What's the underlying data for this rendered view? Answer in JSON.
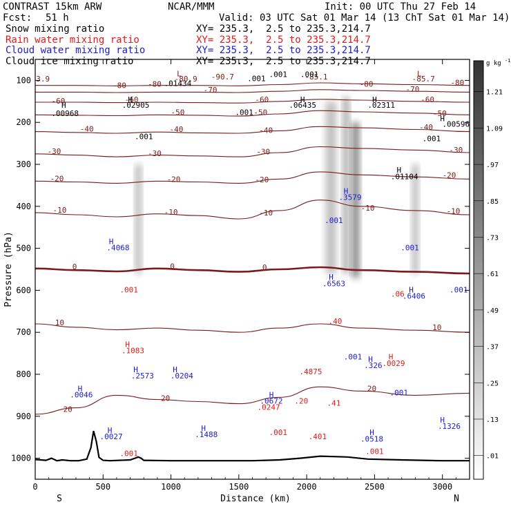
{
  "header": {
    "model": "CONTRAST 15km ARW",
    "center": "NCAR/MMM",
    "init": "Init: 00 UTC Thu 27 Feb 14",
    "fcst_label": "Fcst:",
    "fcst_value": "51 h",
    "valid": "Valid: 03 UTC Sat 01 Mar 14 (13 ChT Sat 01 Mar 14)"
  },
  "legend": [
    {
      "name": "Snow mixing ratio",
      "xy": "XY= 235.3,  2.5 to 235.3,214.7",
      "color": "#000000"
    },
    {
      "name": "Rain water mixing ratio",
      "xy": "XY= 235.3,  2.5 to 235.3,214.7",
      "color": "#e41a1a"
    },
    {
      "name": "Cloud water mixing ratio",
      "xy": "XY= 235.3,  2.5 to 235.3,214.7",
      "color": "#1a1ad6"
    },
    {
      "name": "Cloud ice mixing ratio",
      "xy": "XY= 235.3,  2.5 to 235.3,214.7",
      "color": "#000000"
    }
  ],
  "chart_data": {
    "type": "heatmap",
    "xlabel": "Distance (km)",
    "ylabel": "Pressure (hPa)",
    "xlim": [
      0,
      3200
    ],
    "ylim": [
      1050,
      50
    ],
    "x_ticks": [
      "0",
      "500",
      "1000",
      "1500",
      "2000",
      "2500",
      "3000"
    ],
    "y_ticks": [
      "100",
      "200",
      "300",
      "400",
      "500",
      "600",
      "700",
      "800",
      "900",
      "1000"
    ],
    "endpoint_labels": {
      "left": "S",
      "right": "N"
    },
    "colorbar": {
      "unit": "g kg",
      "unit_exp": "-1",
      "levels": [
        ".01",
        ".13",
        ".25",
        ".37",
        ".49",
        ".61",
        ".73",
        ".85",
        ".97",
        "1.09",
        "1.21"
      ]
    },
    "series": [
      {
        "name": "Snow mixing ratio",
        "style": "shaded",
        "color": "#444444"
      },
      {
        "name": "Rain water mixing ratio",
        "style": "dashed contours",
        "color": "#e41a1a"
      },
      {
        "name": "Cloud water mixing ratio",
        "style": "solid contours",
        "color": "#1a1ad6"
      },
      {
        "name": "Cloud ice mixing ratio",
        "style": "dashed contours",
        "color": "#000000"
      },
      {
        "name": "Temperature",
        "style": "contours",
        "color": "#7a1a1a"
      }
    ],
    "temperature_contours": [
      {
        "label": "0",
        "p": [
          548,
          552,
          555,
          548,
          552,
          556,
          550,
          545,
          552,
          556,
          560
        ],
        "x": [
          0,
          300,
          600,
          900,
          1200,
          1500,
          1800,
          2100,
          2400,
          2800,
          3200
        ]
      },
      {
        "label": "-10",
        "p": [
          415,
          420,
          425,
          418,
          422,
          430,
          410,
          385,
          400,
          410,
          420
        ],
        "x": [
          0,
          300,
          600,
          900,
          1200,
          1500,
          1800,
          2100,
          2400,
          2800,
          3200
        ]
      },
      {
        "label": "-20",
        "p": [
          340,
          342,
          345,
          340,
          342,
          345,
          335,
          318,
          325,
          330,
          335
        ],
        "x": [
          0,
          300,
          600,
          900,
          1200,
          1500,
          1800,
          2100,
          2400,
          2800,
          3200
        ]
      },
      {
        "label": "-30",
        "p": [
          275,
          278,
          282,
          278,
          280,
          282,
          272,
          258,
          262,
          266,
          272
        ],
        "x": [
          0,
          300,
          600,
          900,
          1200,
          1500,
          1800,
          2100,
          2400,
          2800,
          3200
        ]
      },
      {
        "label": "-40",
        "p": [
          222,
          224,
          226,
          223,
          225,
          226,
          220,
          210,
          213,
          217,
          222
        ],
        "x": [
          0,
          300,
          600,
          900,
          1200,
          1500,
          1800,
          2100,
          2400,
          2800,
          3200
        ]
      },
      {
        "label": "-50",
        "p": [
          182,
          183,
          184,
          182,
          183,
          185,
          180,
          172,
          175,
          178,
          182
        ],
        "x": [
          0,
          300,
          600,
          900,
          1200,
          1500,
          1800,
          2100,
          2400,
          2800,
          3200
        ]
      },
      {
        "label": "-60",
        "p": [
          152,
          152,
          153,
          152,
          153,
          154,
          150,
          145,
          147,
          150,
          152
        ],
        "x": [
          0,
          300,
          600,
          900,
          1200,
          1500,
          1800,
          2100,
          2400,
          2800,
          3200
        ]
      },
      {
        "label": "-70",
        "p": [
          128,
          128,
          129,
          128,
          128,
          129,
          126,
          122,
          124,
          126,
          128
        ],
        "x": [
          0,
          300,
          600,
          900,
          1200,
          1500,
          1800,
          2100,
          2400,
          2800,
          3200
        ]
      },
      {
        "label": "-80",
        "p": [
          112,
          112,
          113,
          112,
          112,
          113,
          110,
          106,
          108,
          110,
          112
        ],
        "x": [
          0,
          300,
          600,
          900,
          1200,
          1500,
          1800,
          2100,
          2400,
          2800,
          3200
        ]
      },
      {
        "label": "10",
        "p": [
          680,
          688,
          694,
          690,
          695,
          700,
          690,
          680,
          690,
          695,
          700
        ],
        "x": [
          0,
          300,
          600,
          900,
          1200,
          1500,
          1800,
          2100,
          2400,
          2800,
          3200
        ]
      },
      {
        "label": "20",
        "p": [
          895,
          880,
          850,
          860,
          865,
          870,
          855,
          830,
          840,
          850,
          845
        ],
        "x": [
          0,
          300,
          600,
          900,
          1200,
          1500,
          1800,
          2100,
          2400,
          2800,
          3200
        ]
      }
    ],
    "terrain": {
      "x": [
        0,
        80,
        120,
        160,
        200,
        260,
        320,
        380,
        410,
        430,
        450,
        470,
        500,
        550,
        700,
        760,
        780,
        800,
        1000,
        1400,
        1600,
        1800,
        1950,
        2100,
        2200,
        2300,
        2450,
        2700,
        3000,
        3200
      ],
      "p": [
        1003,
        1005,
        1000,
        1006,
        1004,
        1006,
        1006,
        1002,
        975,
        935,
        960,
        998,
        1005,
        1006,
        1004,
        997,
        1000,
        1005,
        1006,
        1006,
        1006,
        1004,
        1000,
        995,
        996,
        997,
        1002,
        1004,
        1006,
        1006
      ]
    },
    "snow_shading": [
      {
        "x": 760,
        "p_top": 300,
        "p_bot": 560,
        "width": 40,
        "intensity": 0.45
      },
      {
        "x": 2180,
        "p_top": 150,
        "p_bot": 560,
        "width": 80,
        "intensity": 0.35
      },
      {
        "x": 2290,
        "p_top": 140,
        "p_bot": 560,
        "width": 40,
        "intensity": 0.55
      },
      {
        "x": 2360,
        "p_top": 200,
        "p_bot": 570,
        "width": 50,
        "intensity": 0.75
      },
      {
        "x": 2800,
        "p_top": 300,
        "p_bot": 560,
        "width": 40,
        "intensity": 0.45
      }
    ],
    "annotations": [
      {
        "text": "L",
        "x": 1060,
        "p": 90,
        "color": "#7a1a1a"
      },
      {
        "text": "L",
        "x": 2830,
        "p": 90,
        "color": "#7a1a1a"
      },
      {
        "text": "33.9",
        "x": 40,
        "p": 103,
        "color": "#7a1a1a"
      },
      {
        "text": "-80.9",
        "x": 1110,
        "p": 103,
        "color": "#7a1a1a"
      },
      {
        "text": "-90.7",
        "x": 1380,
        "p": 98,
        "color": "#7a1a1a"
      },
      {
        "text": "-85.1",
        "x": 2070,
        "p": 98,
        "color": "#7a1a1a"
      },
      {
        "text": "-85.7",
        "x": 2860,
        "p": 103,
        "color": "#7a1a1a"
      },
      {
        "text": "-80",
        "x": 620,
        "p": 118,
        "color": "#7a1a1a"
      },
      {
        "text": "-80",
        "x": 880,
        "p": 115,
        "color": "#7a1a1a"
      },
      {
        "text": "-80",
        "x": 2440,
        "p": 115,
        "color": "#7a1a1a"
      },
      {
        "text": "-80",
        "x": 3110,
        "p": 112,
        "color": "#7a1a1a"
      },
      {
        "text": "-70",
        "x": 1290,
        "p": 129,
        "color": "#7a1a1a"
      },
      {
        "text": "-70",
        "x": 2780,
        "p": 127,
        "color": "#7a1a1a"
      },
      {
        "text": "-60",
        "x": 170,
        "p": 155,
        "color": "#7a1a1a"
      },
      {
        "text": "-60",
        "x": 710,
        "p": 152,
        "color": "#7a1a1a"
      },
      {
        "text": "-60",
        "x": 1670,
        "p": 152,
        "color": "#7a1a1a"
      },
      {
        "text": "-60",
        "x": 2890,
        "p": 152,
        "color": "#7a1a1a"
      },
      {
        "text": "-50",
        "x": 1050,
        "p": 182,
        "color": "#7a1a1a"
      },
      {
        "text": "-50",
        "x": 1660,
        "p": 182,
        "color": "#7a1a1a"
      },
      {
        "text": "-50",
        "x": 2980,
        "p": 185,
        "color": "#7a1a1a"
      },
      {
        "text": "-40",
        "x": 380,
        "p": 222,
        "color": "#7a1a1a"
      },
      {
        "text": "-40",
        "x": 1040,
        "p": 223,
        "color": "#7a1a1a"
      },
      {
        "text": "-40",
        "x": 1700,
        "p": 225,
        "color": "#7a1a1a"
      },
      {
        "text": "-40",
        "x": 2880,
        "p": 218,
        "color": "#7a1a1a"
      },
      {
        "text": "-30",
        "x": 140,
        "p": 275,
        "color": "#7a1a1a"
      },
      {
        "text": "-30",
        "x": 880,
        "p": 280,
        "color": "#7a1a1a"
      },
      {
        "text": "-30",
        "x": 1680,
        "p": 276,
        "color": "#7a1a1a"
      },
      {
        "text": "-30",
        "x": 3100,
        "p": 272,
        "color": "#7a1a1a"
      },
      {
        "text": "-20",
        "x": 160,
        "p": 340,
        "color": "#7a1a1a"
      },
      {
        "text": "-20",
        "x": 1020,
        "p": 342,
        "color": "#7a1a1a"
      },
      {
        "text": "-20",
        "x": 1670,
        "p": 343,
        "color": "#7a1a1a"
      },
      {
        "text": "-20",
        "x": 3050,
        "p": 332,
        "color": "#7a1a1a"
      },
      {
        "text": "-10",
        "x": 180,
        "p": 415,
        "color": "#7a1a1a"
      },
      {
        "text": "-10",
        "x": 1000,
        "p": 420,
        "color": "#7a1a1a"
      },
      {
        "text": "-10",
        "x": 1700,
        "p": 422,
        "color": "#7a1a1a"
      },
      {
        "text": "-10",
        "x": 2450,
        "p": 410,
        "color": "#7a1a1a"
      },
      {
        "text": "-10",
        "x": 3080,
        "p": 418,
        "color": "#7a1a1a"
      },
      {
        "text": "0",
        "x": 290,
        "p": 550,
        "color": "#7a1a1a"
      },
      {
        "text": "0",
        "x": 1010,
        "p": 549,
        "color": "#7a1a1a"
      },
      {
        "text": "0",
        "x": 1690,
        "p": 552,
        "color": "#7a1a1a"
      },
      {
        "text": "10",
        "x": 180,
        "p": 683,
        "color": "#7a1a1a"
      },
      {
        "text": "10",
        "x": 2960,
        "p": 695,
        "color": "#7a1a1a"
      },
      {
        "text": "20",
        "x": 240,
        "p": 890,
        "color": "#7a1a1a"
      },
      {
        "text": "20",
        "x": 960,
        "p": 863,
        "color": "#7a1a1a"
      },
      {
        "text": "20",
        "x": 2480,
        "p": 840,
        "color": "#7a1a1a"
      },
      {
        "text": "H",
        "x": 210,
        "p": 165,
        "color": "#000000"
      },
      {
        "text": ".00968",
        "x": 220,
        "p": 185,
        "color": "#000000"
      },
      {
        "text": "H",
        "x": 700,
        "p": 152,
        "color": "#000000"
      },
      {
        "text": ".02905",
        "x": 740,
        "p": 165,
        "color": "#000000"
      },
      {
        "text": ".01434",
        "x": 1050,
        "p": 113,
        "color": "#000000"
      },
      {
        "text": ".001",
        "x": 800,
        "p": 240,
        "color": "#000000"
      },
      {
        "text": ".001",
        "x": 1630,
        "p": 102,
        "color": "#000000"
      },
      {
        "text": ".001",
        "x": 1790,
        "p": 92,
        "color": "#000000"
      },
      {
        "text": ".001",
        "x": 2020,
        "p": 92,
        "color": "#000000"
      },
      {
        "text": ".001",
        "x": 1540,
        "p": 182,
        "color": "#000000"
      },
      {
        "text": ".001",
        "x": 2920,
        "p": 245,
        "color": "#000000"
      },
      {
        "text": "H",
        "x": 1970,
        "p": 152,
        "color": "#000000"
      },
      {
        "text": ".06435",
        "x": 1970,
        "p": 165,
        "color": "#000000"
      },
      {
        "text": "H",
        "x": 2500,
        "p": 152,
        "color": "#000000"
      },
      {
        "text": ".02311",
        "x": 2550,
        "p": 165,
        "color": "#000000"
      },
      {
        "text": "H",
        "x": 3000,
        "p": 197,
        "color": "#000000"
      },
      {
        "text": ".00596",
        "x": 3100,
        "p": 210,
        "color": "#000000"
      },
      {
        "text": "H",
        "x": 2680,
        "p": 320,
        "color": "#000000"
      },
      {
        "text": ".01104",
        "x": 2720,
        "p": 335,
        "color": "#000000"
      },
      {
        "text": "H",
        "x": 2290,
        "p": 370,
        "color": "#1a1ad6"
      },
      {
        "text": ".3579",
        "x": 2320,
        "p": 385,
        "color": "#1a1ad6"
      },
      {
        "text": ".001",
        "x": 2200,
        "p": 440,
        "color": "#1a1ad6"
      },
      {
        "text": "H",
        "x": 560,
        "p": 490,
        "color": "#1a1ad6"
      },
      {
        "text": ".4068",
        "x": 610,
        "p": 505,
        "color": "#1a1ad6"
      },
      {
        "text": ".001",
        "x": 2760,
        "p": 505,
        "color": "#1a1ad6"
      },
      {
        "text": "H",
        "x": 2180,
        "p": 575,
        "color": "#1a1ad6"
      },
      {
        "text": ".6563",
        "x": 2200,
        "p": 590,
        "color": "#1a1ad6"
      },
      {
        "text": "H",
        "x": 2770,
        "p": 605,
        "color": "#1a1ad6"
      },
      {
        "text": ".6406",
        "x": 2790,
        "p": 620,
        "color": "#1a1ad6"
      },
      {
        "text": ".001",
        "x": 3120,
        "p": 605,
        "color": "#1a1ad6"
      },
      {
        "text": ".001",
        "x": 2340,
        "p": 765,
        "color": "#1a1ad6"
      },
      {
        "text": "H",
        "x": 2470,
        "p": 770,
        "color": "#1a1ad6"
      },
      {
        "text": ".326",
        "x": 2490,
        "p": 785,
        "color": "#1a1ad6"
      },
      {
        "text": "H",
        "x": 740,
        "p": 795,
        "color": "#1a1ad6"
      },
      {
        "text": ".2573",
        "x": 790,
        "p": 810,
        "color": "#1a1ad6"
      },
      {
        "text": "H",
        "x": 1030,
        "p": 795,
        "color": "#1a1ad6"
      },
      {
        "text": ".0204",
        "x": 1080,
        "p": 810,
        "color": "#1a1ad6"
      },
      {
        "text": "H",
        "x": 330,
        "p": 840,
        "color": "#1a1ad6"
      },
      {
        "text": ".0046",
        "x": 340,
        "p": 855,
        "color": "#1a1ad6"
      },
      {
        "text": ".001",
        "x": 2680,
        "p": 850,
        "color": "#1a1ad6"
      },
      {
        "text": "H",
        "x": 1240,
        "p": 935,
        "color": "#1a1ad6"
      },
      {
        "text": ".1488",
        "x": 1260,
        "p": 950,
        "color": "#1a1ad6"
      },
      {
        "text": "H",
        "x": 2480,
        "p": 945,
        "color": "#1a1ad6"
      },
      {
        "text": ".0518",
        "x": 2480,
        "p": 960,
        "color": "#1a1ad6"
      },
      {
        "text": "H",
        "x": 3000,
        "p": 915,
        "color": "#1a1ad6"
      },
      {
        "text": ".1326",
        "x": 3050,
        "p": 930,
        "color": "#1a1ad6"
      },
      {
        "text": "H",
        "x": 550,
        "p": 940,
        "color": "#1a1ad6"
      },
      {
        "text": ".0027",
        "x": 560,
        "p": 955,
        "color": "#1a1ad6"
      },
      {
        "text": "H",
        "x": 1740,
        "p": 855,
        "color": "#1a1ad6"
      },
      {
        "text": ".0672",
        "x": 1740,
        "p": 870,
        "color": "#1a1ad6"
      },
      {
        "text": "H",
        "x": 2620,
        "p": 765,
        "color": "#e41a1a"
      },
      {
        "text": ".0029",
        "x": 2640,
        "p": 780,
        "color": "#e41a1a"
      },
      {
        "text": "H",
        "x": 680,
        "p": 735,
        "color": "#e41a1a"
      },
      {
        "text": ".1083",
        "x": 720,
        "p": 750,
        "color": "#e41a1a"
      },
      {
        "text": ".001",
        "x": 690,
        "p": 605,
        "color": "#e41a1a"
      },
      {
        "text": ".001",
        "x": 690,
        "p": 995,
        "color": "#e41a1a"
      },
      {
        "text": ".001",
        "x": 1790,
        "p": 945,
        "color": "#e41a1a"
      },
      {
        "text": ".001",
        "x": 2500,
        "p": 990,
        "color": "#e41a1a"
      },
      {
        "text": ".06",
        "x": 2670,
        "p": 615,
        "color": "#e41a1a"
      },
      {
        "text": ".4875",
        "x": 2030,
        "p": 800,
        "color": "#e41a1a"
      },
      {
        "text": ".401",
        "x": 2080,
        "p": 955,
        "color": "#e41a1a"
      },
      {
        "text": ".41",
        "x": 2200,
        "p": 875,
        "color": "#e41a1a"
      },
      {
        "text": ".20",
        "x": 1960,
        "p": 870,
        "color": "#e41a1a"
      },
      {
        "text": ".0247",
        "x": 1720,
        "p": 885,
        "color": "#e41a1a"
      },
      {
        "text": ".40",
        "x": 2210,
        "p": 680,
        "color": "#e41a1a"
      }
    ]
  }
}
